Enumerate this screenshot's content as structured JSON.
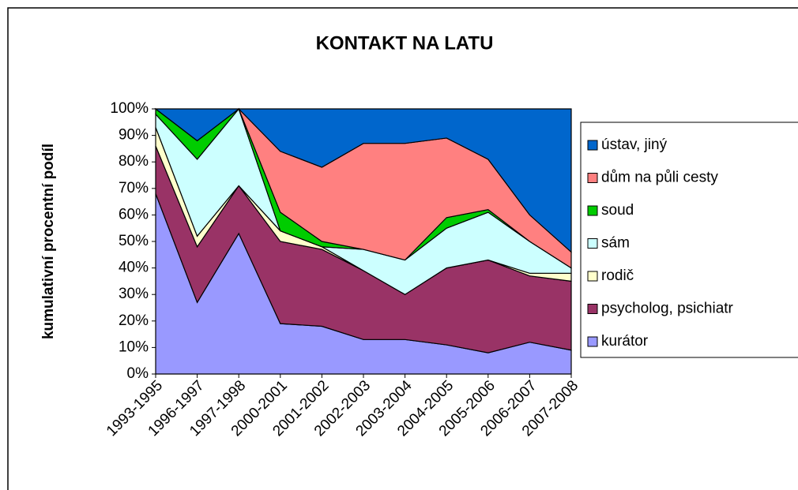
{
  "chart_data": {
    "type": "stacked_area",
    "title": "KONTAKT NA LATU",
    "y_label": "kumulativní procentní podíl",
    "categories": [
      "1993-1995",
      "1996-1997",
      "1997-1998",
      "2000-2001",
      "2001-2002",
      "2002-2003",
      "2003-2004",
      "2004-2005",
      "2005-2006",
      "2006-2007",
      "2007-2008"
    ],
    "series": [
      {
        "name": "kurátor",
        "color": "#9999ff",
        "values": [
          68,
          27,
          53,
          19,
          18,
          13,
          13,
          11,
          8,
          12,
          9
        ]
      },
      {
        "name": "psycholog, psichiatr",
        "color": "#993366",
        "values": [
          18,
          21,
          18,
          31,
          29,
          26,
          17,
          29,
          35,
          25,
          26
        ]
      },
      {
        "name": "rodič",
        "color": "#ffffcc",
        "values": [
          7,
          4,
          0,
          4,
          1,
          0,
          0,
          0,
          0,
          1,
          3
        ]
      },
      {
        "name": "sám",
        "color": "#ccffff",
        "values": [
          5,
          29,
          29,
          0,
          0,
          8,
          13,
          15,
          18,
          12,
          2
        ]
      },
      {
        "name": "soud",
        "color": "#00cc00",
        "values": [
          2,
          7,
          0,
          7,
          2,
          0,
          0,
          4,
          1,
          0,
          0
        ]
      },
      {
        "name": "dům na půli cesty",
        "color": "#ff8080",
        "values": [
          0,
          0,
          0,
          23,
          28,
          40,
          44,
          30,
          19,
          10,
          6
        ]
      },
      {
        "name": "ústav, jiný",
        "color": "#0066cc",
        "values": [
          0,
          12,
          0,
          16,
          22,
          13,
          13,
          11,
          19,
          40,
          54
        ]
      }
    ],
    "ylim": [
      0,
      100
    ],
    "yticks": [
      {
        "value": 0,
        "label": "0%"
      },
      {
        "value": 10,
        "label": "10%"
      },
      {
        "value": 20,
        "label": "20%"
      },
      {
        "value": 30,
        "label": "30%"
      },
      {
        "value": 40,
        "label": "40%"
      },
      {
        "value": 50,
        "label": "50%"
      },
      {
        "value": 60,
        "label": "60%"
      },
      {
        "value": 70,
        "label": "70%"
      },
      {
        "value": 80,
        "label": "80%"
      },
      {
        "value": 90,
        "label": "90%"
      },
      {
        "value": 100,
        "label": "100%"
      }
    ],
    "legend": "right"
  }
}
